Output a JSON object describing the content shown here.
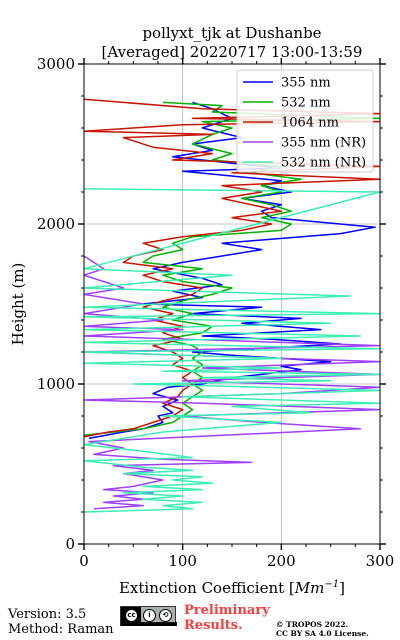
{
  "chart_data": {
    "type": "line",
    "title_line1": "pollyxt_tjk at Dushanbe",
    "title_line2": "[Averaged] 20220717 13:00-13:59",
    "xlabel_text": "Extinction Coefficient [",
    "xlabel_unit": "Mm",
    "xlabel_exp": "−1",
    "xlabel_close": "]",
    "ylabel": "Height (m)",
    "xlim": [
      0,
      300
    ],
    "ylim": [
      0,
      3000
    ],
    "x_ticks": [
      0,
      100,
      200,
      300
    ],
    "y_ticks": [
      0,
      1000,
      2000,
      3000
    ],
    "grid": true,
    "legend_position": "top-right",
    "series": [
      {
        "name": "355 nm",
        "color": "#0000ff",
        "points": [
          [
            5,
            660
          ],
          [
            40,
            700
          ],
          [
            60,
            720
          ],
          [
            80,
            760
          ],
          [
            75,
            800
          ],
          [
            90,
            820
          ],
          [
            80,
            860
          ],
          [
            95,
            900
          ],
          [
            70,
            940
          ],
          [
            85,
            980
          ],
          [
            120,
            1000
          ],
          [
            150,
            1040
          ],
          [
            180,
            1060
          ],
          [
            220,
            1090
          ],
          [
            200,
            1110
          ],
          [
            250,
            1140
          ],
          [
            150,
            1180
          ],
          [
            110,
            1200
          ],
          [
            200,
            1230
          ],
          [
            260,
            1250
          ],
          [
            190,
            1280
          ],
          [
            120,
            1300
          ],
          [
            240,
            1340
          ],
          [
            160,
            1380
          ],
          [
            220,
            1410
          ],
          [
            110,
            1440
          ],
          [
            180,
            1480
          ],
          [
            60,
            1500
          ],
          [
            120,
            1540
          ],
          [
            90,
            1580
          ],
          [
            140,
            1620
          ],
          [
            120,
            1660
          ],
          [
            70,
            1720
          ],
          [
            100,
            1760
          ],
          [
            180,
            1840
          ],
          [
            140,
            1880
          ],
          [
            260,
            1940
          ],
          [
            295,
            1980
          ],
          [
            190,
            2040
          ],
          [
            180,
            2080
          ],
          [
            200,
            2120
          ],
          [
            160,
            2160
          ],
          [
            210,
            2200
          ],
          [
            180,
            2240
          ],
          [
            200,
            2270
          ],
          [
            100,
            2330
          ],
          [
            200,
            2350
          ],
          [
            150,
            2380
          ],
          [
            90,
            2420
          ],
          [
            130,
            2460
          ],
          [
            110,
            2500
          ],
          [
            160,
            2540
          ],
          [
            120,
            2600
          ],
          [
            150,
            2660
          ],
          [
            130,
            2720
          ],
          [
            110,
            2760
          ]
        ]
      },
      {
        "name": "532 nm",
        "color": "#00b400",
        "points": [
          [
            0,
            680
          ],
          [
            30,
            700
          ],
          [
            60,
            720
          ],
          [
            90,
            760
          ],
          [
            100,
            800
          ],
          [
            110,
            840
          ],
          [
            100,
            880
          ],
          [
            110,
            920
          ],
          [
            120,
            960
          ],
          [
            110,
            1000
          ],
          [
            120,
            1040
          ],
          [
            110,
            1080
          ],
          [
            120,
            1120
          ],
          [
            110,
            1160
          ],
          [
            120,
            1200
          ],
          [
            110,
            1240
          ],
          [
            80,
            1280
          ],
          [
            120,
            1320
          ],
          [
            130,
            1360
          ],
          [
            90,
            1400
          ],
          [
            110,
            1440
          ],
          [
            80,
            1480
          ],
          [
            100,
            1520
          ],
          [
            130,
            1560
          ],
          [
            150,
            1600
          ],
          [
            100,
            1640
          ],
          [
            80,
            1680
          ],
          [
            120,
            1720
          ],
          [
            60,
            1760
          ],
          [
            70,
            1800
          ],
          [
            100,
            1840
          ],
          [
            90,
            1880
          ],
          [
            110,
            1920
          ],
          [
            200,
            1960
          ],
          [
            210,
            2000
          ],
          [
            180,
            2040
          ],
          [
            210,
            2080
          ],
          [
            190,
            2120
          ],
          [
            160,
            2160
          ],
          [
            200,
            2200
          ],
          [
            180,
            2240
          ],
          [
            220,
            2280
          ],
          [
            170,
            2320
          ],
          [
            200,
            2360
          ],
          [
            130,
            2400
          ],
          [
            150,
            2440
          ],
          [
            110,
            2500
          ],
          [
            130,
            2560
          ],
          [
            150,
            2600
          ],
          [
            120,
            2640
          ],
          [
            300,
            2660
          ],
          [
            130,
            2700
          ],
          [
            140,
            2740
          ],
          [
            80,
            2760
          ]
        ]
      },
      {
        "name": "1064 nm",
        "color": "#c81400",
        "points": [
          [
            0,
            670
          ],
          [
            25,
            700
          ],
          [
            50,
            720
          ],
          [
            70,
            760
          ],
          [
            90,
            800
          ],
          [
            100,
            840
          ],
          [
            80,
            880
          ],
          [
            95,
            920
          ],
          [
            100,
            960
          ],
          [
            110,
            1000
          ],
          [
            100,
            1040
          ],
          [
            110,
            1080
          ],
          [
            90,
            1120
          ],
          [
            100,
            1160
          ],
          [
            90,
            1200
          ],
          [
            70,
            1240
          ],
          [
            100,
            1280
          ],
          [
            80,
            1320
          ],
          [
            100,
            1360
          ],
          [
            70,
            1400
          ],
          [
            90,
            1440
          ],
          [
            60,
            1480
          ],
          [
            80,
            1520
          ],
          [
            110,
            1560
          ],
          [
            120,
            1600
          ],
          [
            80,
            1640
          ],
          [
            60,
            1680
          ],
          [
            90,
            1720
          ],
          [
            40,
            1760
          ],
          [
            50,
            1800
          ],
          [
            80,
            1840
          ],
          [
            60,
            1880
          ],
          [
            100,
            1920
          ],
          [
            160,
            1960
          ],
          [
            190,
            2000
          ],
          [
            150,
            2040
          ],
          [
            200,
            2080
          ],
          [
            170,
            2120
          ],
          [
            140,
            2160
          ],
          [
            180,
            2200
          ],
          [
            140,
            2240
          ],
          [
            300,
            2280
          ],
          [
            150,
            2320
          ],
          [
            300,
            2360
          ],
          [
            90,
            2400
          ],
          [
            130,
            2440
          ],
          [
            70,
            2480
          ],
          [
            40,
            2540
          ],
          [
            130,
            2560
          ],
          [
            0,
            2580
          ],
          [
            100,
            2620
          ],
          [
            300,
            2640
          ],
          [
            110,
            2660
          ],
          [
            300,
            2690
          ],
          [
            120,
            2720
          ],
          [
            0,
            2780
          ]
        ]
      },
      {
        "name": "355 nm (NR)",
        "color": "#a040ff",
        "points": [
          [
            10,
            220
          ],
          [
            60,
            240
          ],
          [
            20,
            260
          ],
          [
            60,
            280
          ],
          [
            30,
            300
          ],
          [
            70,
            320
          ],
          [
            20,
            340
          ],
          [
            50,
            360
          ],
          [
            80,
            400
          ],
          [
            40,
            440
          ],
          [
            70,
            460
          ],
          [
            30,
            490
          ],
          [
            170,
            510
          ],
          [
            80,
            530
          ],
          [
            10,
            560
          ],
          [
            40,
            600
          ],
          [
            5,
            640
          ],
          [
            280,
            720
          ],
          [
            180,
            760
          ],
          [
            100,
            800
          ],
          [
            300,
            840
          ],
          [
            120,
            880
          ],
          [
            0,
            900
          ],
          [
            200,
            940
          ],
          [
            300,
            980
          ],
          [
            100,
            1020
          ],
          [
            300,
            1060
          ],
          [
            120,
            1100
          ],
          [
            300,
            1140
          ],
          [
            100,
            1180
          ],
          [
            0,
            1200
          ],
          [
            300,
            1240
          ],
          [
            0,
            1300
          ],
          [
            100,
            1340
          ],
          [
            0,
            1360
          ],
          [
            80,
            1400
          ],
          [
            0,
            1440
          ],
          [
            60,
            1500
          ],
          [
            0,
            1560
          ],
          [
            40,
            1600
          ],
          [
            0,
            1680
          ],
          [
            20,
            1720
          ],
          [
            0,
            1800
          ]
        ]
      },
      {
        "name": "532 nm (NR)",
        "color": "#3cf0b4",
        "points": [
          [
            0,
            200
          ],
          [
            110,
            220
          ],
          [
            80,
            240
          ],
          [
            120,
            260
          ],
          [
            60,
            280
          ],
          [
            100,
            300
          ],
          [
            40,
            320
          ],
          [
            120,
            340
          ],
          [
            60,
            360
          ],
          [
            130,
            380
          ],
          [
            90,
            400
          ],
          [
            120,
            420
          ],
          [
            40,
            440
          ],
          [
            110,
            460
          ],
          [
            60,
            480
          ],
          [
            0,
            520
          ],
          [
            110,
            540
          ],
          [
            60,
            580
          ],
          [
            0,
            620
          ],
          [
            80,
            700
          ],
          [
            200,
            760
          ],
          [
            80,
            800
          ],
          [
            230,
            820
          ],
          [
            150,
            860
          ],
          [
            300,
            880
          ],
          [
            100,
            920
          ],
          [
            200,
            940
          ],
          [
            300,
            960
          ],
          [
            180,
            980
          ],
          [
            50,
            1000
          ],
          [
            250,
            1020
          ],
          [
            120,
            1040
          ],
          [
            300,
            1060
          ],
          [
            80,
            1080
          ],
          [
            200,
            1100
          ],
          [
            0,
            1130
          ],
          [
            200,
            1160
          ],
          [
            0,
            1200
          ],
          [
            300,
            1220
          ],
          [
            0,
            1260
          ],
          [
            280,
            1300
          ],
          [
            0,
            1340
          ],
          [
            250,
            1380
          ],
          [
            0,
            1420
          ],
          [
            300,
            1440
          ],
          [
            0,
            1480
          ],
          [
            270,
            1550
          ],
          [
            0,
            1600
          ],
          [
            150,
            1680
          ],
          [
            0,
            1720
          ],
          [
            300,
            2200
          ],
          [
            0,
            2220
          ]
        ]
      }
    ]
  },
  "footer": {
    "version": "Version: 3.5",
    "method": "Method: Raman",
    "preliminary_line1": "Preliminary",
    "preliminary_line2": "Results.",
    "copyright_line1": "© TROPOS 2022.",
    "copyright_line2": "CC BY SA 4.0 License.",
    "license_badge_icon": "cc-by-sa-icon"
  }
}
